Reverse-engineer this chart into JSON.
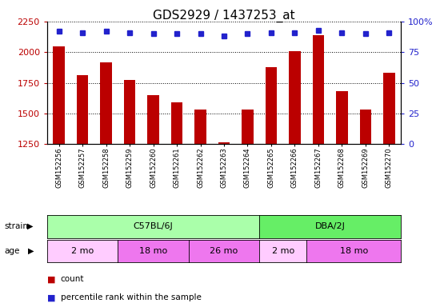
{
  "title": "GDS2929 / 1437253_at",
  "samples": [
    "GSM152256",
    "GSM152257",
    "GSM152258",
    "GSM152259",
    "GSM152260",
    "GSM152261",
    "GSM152262",
    "GSM152263",
    "GSM152264",
    "GSM152265",
    "GSM152266",
    "GSM152267",
    "GSM152268",
    "GSM152269",
    "GSM152270"
  ],
  "counts": [
    2050,
    1810,
    1920,
    1775,
    1650,
    1590,
    1530,
    1265,
    1530,
    1880,
    2010,
    2140,
    1680,
    1530,
    1830
  ],
  "percentile_ranks": [
    92,
    91,
    92,
    91,
    90,
    90,
    90,
    88,
    90,
    91,
    91,
    93,
    91,
    90,
    91
  ],
  "ylim_left": [
    1250,
    2250
  ],
  "ylim_right": [
    0,
    100
  ],
  "yticks_left": [
    1250,
    1500,
    1750,
    2000,
    2250
  ],
  "yticks_right": [
    0,
    25,
    50,
    75,
    100
  ],
  "bar_color": "#BB0000",
  "dot_color": "#2222CC",
  "strain_groups": [
    {
      "label": "C57BL/6J",
      "start": 0,
      "end": 9,
      "color": "#AAFFAA"
    },
    {
      "label": "DBA/2J",
      "start": 9,
      "end": 15,
      "color": "#66EE66"
    }
  ],
  "age_groups": [
    {
      "label": "2 mo",
      "start": 0,
      "end": 3,
      "color": "#FFCCFF"
    },
    {
      "label": "18 mo",
      "start": 3,
      "end": 6,
      "color": "#EE77EE"
    },
    {
      "label": "26 mo",
      "start": 6,
      "end": 9,
      "color": "#EE77EE"
    },
    {
      "label": "2 mo",
      "start": 9,
      "end": 11,
      "color": "#FFCCFF"
    },
    {
      "label": "18 mo",
      "start": 11,
      "end": 15,
      "color": "#EE77EE"
    }
  ],
  "bar_width": 0.5,
  "dot_size": 5,
  "tick_fontsize": 8,
  "label_fontsize": 8,
  "title_fontsize": 11
}
